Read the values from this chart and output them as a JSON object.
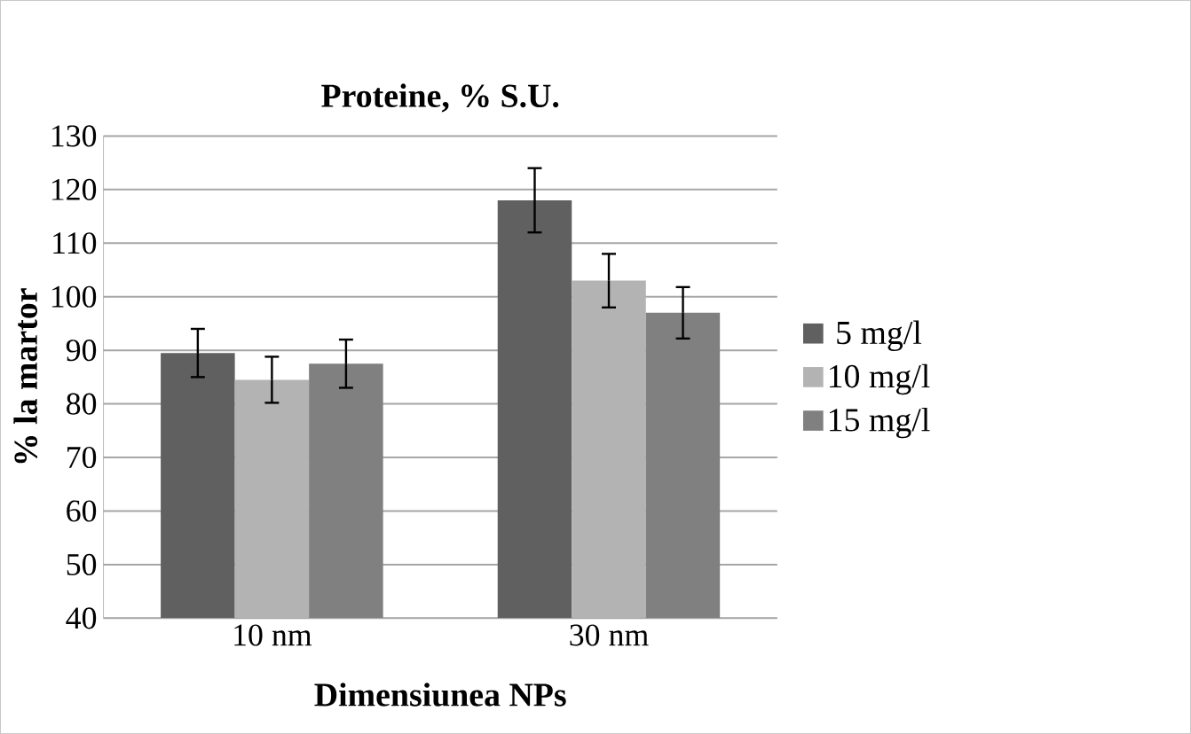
{
  "chart_data": {
    "type": "bar",
    "title": "Proteine, % S.U.",
    "xlabel": "Dimensiunea NPs",
    "ylabel": "% la martor",
    "categories": [
      "10 nm",
      "30 nm"
    ],
    "series": [
      {
        "name": "5 mg/l",
        "color": "#606060",
        "values": [
          89.5,
          118
        ],
        "errors": [
          4.5,
          6
        ]
      },
      {
        "name": "10 mg/l",
        "color": "#b3b3b3",
        "values": [
          84.5,
          103
        ],
        "errors": [
          4.3,
          5
        ]
      },
      {
        "name": "15 mg/l",
        "color": "#808080",
        "values": [
          87.5,
          97
        ],
        "errors": [
          4.5,
          4.8
        ]
      }
    ],
    "ylim": [
      40,
      130
    ],
    "yticks": [
      40,
      50,
      60,
      70,
      80,
      90,
      100,
      110,
      120,
      130
    ],
    "grid": "y",
    "legend": "right"
  }
}
